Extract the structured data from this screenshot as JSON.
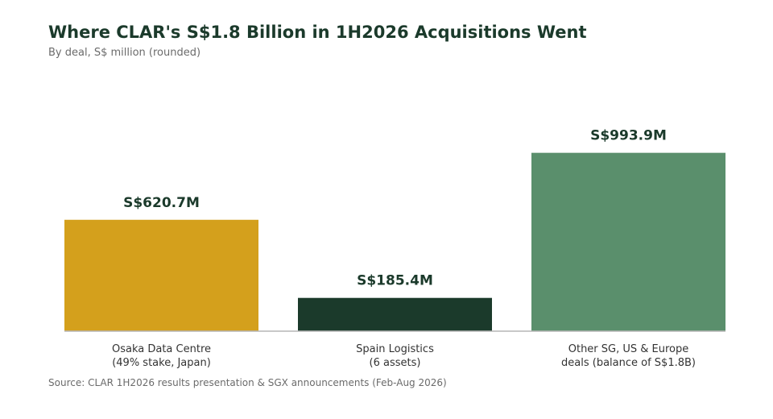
{
  "chart_data": {
    "type": "bar",
    "title": "Where CLAR's S$1.8 Billion in 1H2026 Acquisitions Went",
    "subtitle": "By deal, S$ million (rounded)",
    "categories": [
      [
        "Osaka Data Centre",
        "(49% stake, Japan)"
      ],
      [
        "Spain Logistics",
        "(6 assets)"
      ],
      [
        "Other SG, US & Europe",
        "deals (balance of S$1.8B)"
      ]
    ],
    "values": [
      620.7,
      185.4,
      993.9
    ],
    "value_labels": [
      "S$620.7M",
      "S$185.4M",
      "S$993.9M"
    ],
    "colors": [
      "#d4a01c",
      "#1b3a2b",
      "#5a8f6c"
    ],
    "ylim": [
      0,
      1000
    ],
    "xlabel": "",
    "ylabel": "",
    "grid": false,
    "source": "Source: CLAR 1H2026 results presentation & SGX announcements (Feb-Aug 2026)"
  }
}
